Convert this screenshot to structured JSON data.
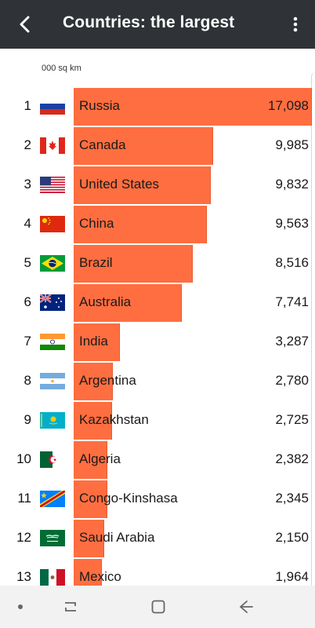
{
  "header": {
    "title": "Countries: the largest"
  },
  "unit_label": "000 sq km",
  "colors": {
    "appbar": "#2f3236",
    "bar": "#ff6e40",
    "navbar": "#f2f2f2"
  },
  "icons": {
    "back": "back-arrow-icon",
    "menu": "more-vert-icon"
  },
  "max_value": 17098,
  "rows": [
    {
      "rank": "1",
      "name": "Russia",
      "value_label": "17,098",
      "value": 17098,
      "flag": "russia-flag-icon"
    },
    {
      "rank": "2",
      "name": "Canada",
      "value_label": "9,985",
      "value": 9985,
      "flag": "canada-flag-icon"
    },
    {
      "rank": "3",
      "name": "United States",
      "value_label": "9,832",
      "value": 9832,
      "flag": "usa-flag-icon"
    },
    {
      "rank": "4",
      "name": "China",
      "value_label": "9,563",
      "value": 9563,
      "flag": "china-flag-icon"
    },
    {
      "rank": "5",
      "name": "Brazil",
      "value_label": "8,516",
      "value": 8516,
      "flag": "brazil-flag-icon"
    },
    {
      "rank": "6",
      "name": "Australia",
      "value_label": "7,741",
      "value": 7741,
      "flag": "australia-flag-icon"
    },
    {
      "rank": "7",
      "name": "India",
      "value_label": "3,287",
      "value": 3287,
      "flag": "india-flag-icon"
    },
    {
      "rank": "8",
      "name": "Argentina",
      "value_label": "2,780",
      "value": 2780,
      "flag": "argentina-flag-icon"
    },
    {
      "rank": "9",
      "name": "Kazakhstan",
      "value_label": "2,725",
      "value": 2725,
      "flag": "kazakhstan-flag-icon"
    },
    {
      "rank": "10",
      "name": "Algeria",
      "value_label": "2,382",
      "value": 2382,
      "flag": "algeria-flag-icon"
    },
    {
      "rank": "11",
      "name": "Congo-Kinshasa",
      "value_label": "2,345",
      "value": 2345,
      "flag": "drc-flag-icon"
    },
    {
      "rank": "12",
      "name": "Saudi Arabia",
      "value_label": "2,150",
      "value": 2150,
      "flag": "saudi-arabia-flag-icon"
    },
    {
      "rank": "13",
      "name": "Mexico",
      "value_label": "1,964",
      "value": 1964,
      "flag": "mexico-flag-icon"
    }
  ],
  "navbar": {
    "items": [
      "dot-icon",
      "recents-icon",
      "home-icon",
      "back-icon"
    ]
  }
}
